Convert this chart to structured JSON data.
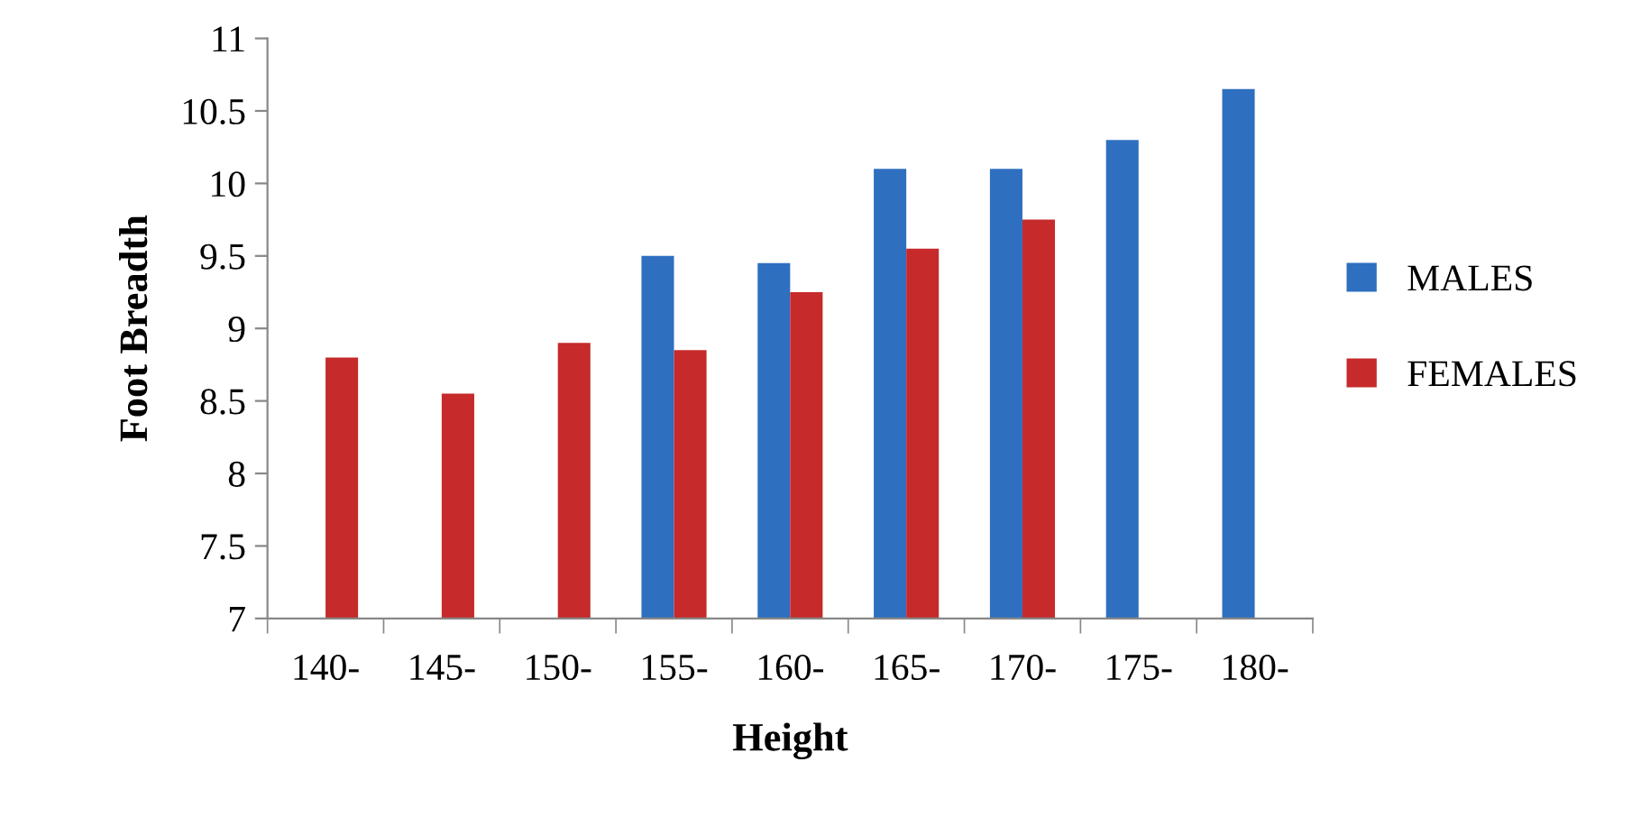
{
  "chart_data": {
    "type": "bar",
    "xlabel": "Height",
    "ylabel": "Foot Breadth",
    "categories": [
      "140-",
      "145-",
      "150-",
      "155-",
      "160-",
      "165-",
      "170-",
      "175-",
      "180-"
    ],
    "series": [
      {
        "name": "MALES",
        "color": "#2e6fc0",
        "values": [
          null,
          null,
          null,
          9.5,
          9.45,
          10.1,
          10.1,
          10.3,
          10.65
        ]
      },
      {
        "name": "FEMALES",
        "color": "#c62a2a",
        "values": [
          8.8,
          8.55,
          8.9,
          8.85,
          9.25,
          9.55,
          9.75,
          null,
          null
        ]
      }
    ],
    "ylim": [
      7,
      11
    ],
    "yticks": [
      7,
      7.5,
      8,
      8.5,
      9,
      9.5,
      10,
      10.5,
      11
    ],
    "grid": false,
    "legend": "right"
  }
}
